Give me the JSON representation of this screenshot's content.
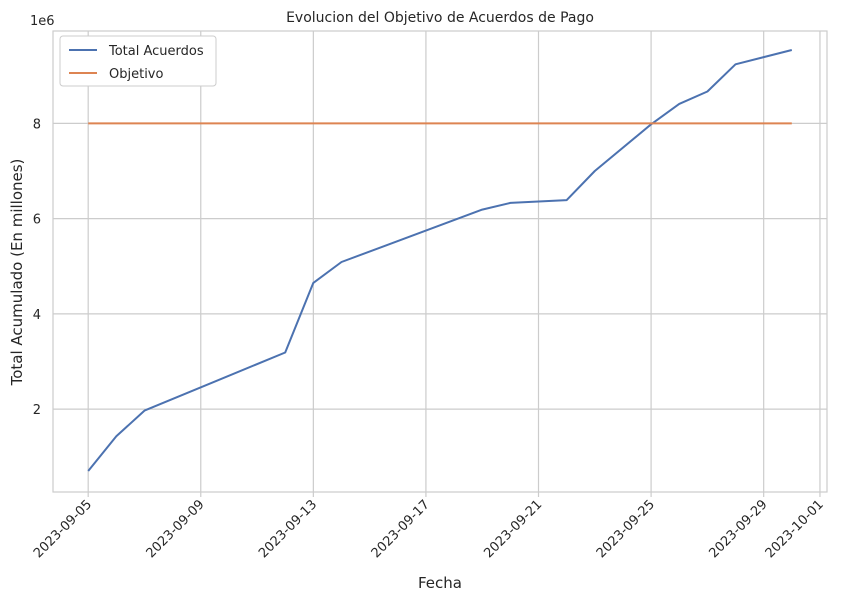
{
  "chart_data": {
    "type": "line",
    "title": "Evolucion del Objetivo de Acuerdos de Pago",
    "xlabel": "Fecha",
    "ylabel": "Total Acumulado (En millones)",
    "y_offset_label": "1e6",
    "x_ticks": [
      "2023-09-05",
      "2023-09-09",
      "2023-09-13",
      "2023-09-17",
      "2023-09-21",
      "2023-09-25",
      "2023-09-29",
      "2023-10-01"
    ],
    "y_ticks": [
      2,
      4,
      6,
      8
    ],
    "xlim": [
      "2023-09-03 18:00",
      "2023-10-01 06:00"
    ],
    "ylim": [
      0.26,
      9.94
    ],
    "grid": true,
    "legend_position": "top-left",
    "series": [
      {
        "name": "Total Acuerdos",
        "color": "#4c72b0",
        "x": [
          "2023-09-05",
          "2023-09-06",
          "2023-09-07",
          "2023-09-12",
          "2023-09-13",
          "2023-09-14",
          "2023-09-19",
          "2023-09-20",
          "2023-09-22",
          "2023-09-23",
          "2023-09-25",
          "2023-09-26",
          "2023-09-27",
          "2023-09-28",
          "2023-09-30"
        ],
        "y": [
          0.7,
          1.43,
          1.97,
          3.19,
          4.65,
          5.09,
          6.19,
          6.33,
          6.39,
          7.0,
          7.98,
          8.41,
          8.67,
          9.24,
          9.54
        ]
      },
      {
        "name": "Objetivo",
        "color": "#dd8452",
        "x": [
          "2023-09-05",
          "2023-09-30"
        ],
        "y": [
          8.0,
          8.0
        ]
      }
    ]
  }
}
